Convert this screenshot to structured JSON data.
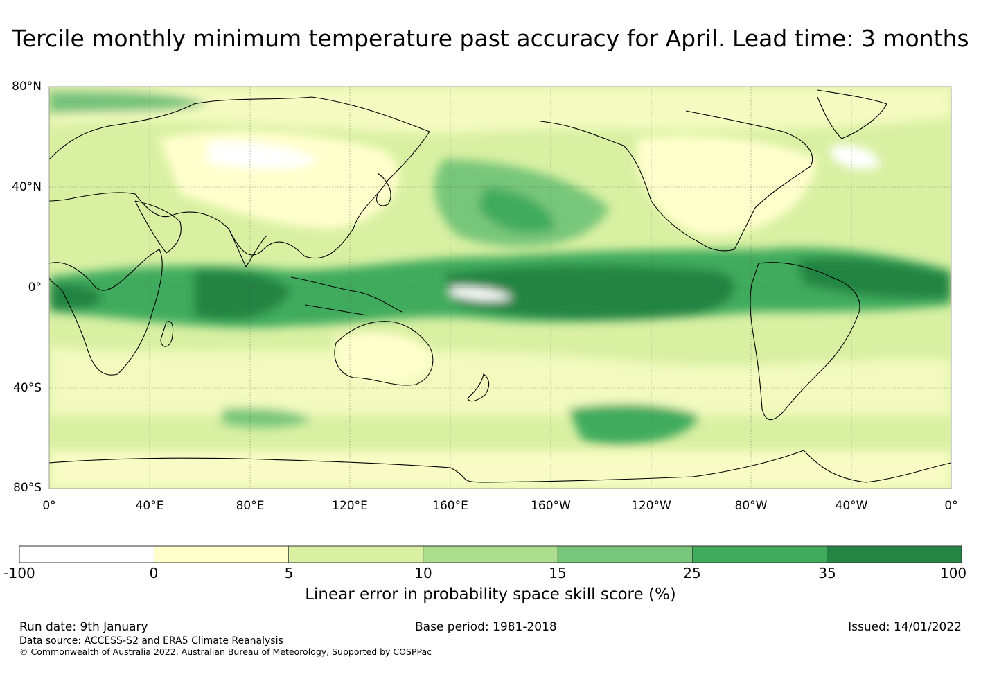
{
  "title": "Tercile monthly minimum temperature past accuracy for April. Lead time: 3 months",
  "map": {
    "lat_labels": [
      "80°N",
      "40°N",
      "0°",
      "40°S",
      "80°S"
    ],
    "lon_labels": [
      "0°",
      "40°E",
      "80°E",
      "120°E",
      "160°E",
      "160°W",
      "120°W",
      "80°W",
      "40°W",
      "0°"
    ],
    "lat_range": [
      -80,
      80
    ],
    "lon_range": [
      0,
      360
    ]
  },
  "colorbar": {
    "ticks": [
      "-100",
      "0",
      "5",
      "10",
      "15",
      "25",
      "35",
      "100"
    ],
    "colors": [
      "#ffffff",
      "#ffffcc",
      "#d9f0a3",
      "#addd8e",
      "#78c679",
      "#41ab5d",
      "#238443"
    ],
    "label": "Linear error in probability space skill score (%)"
  },
  "footer": {
    "run_date": "Run date: 9th January",
    "base_period": "Base period: 1981-2018",
    "issued": "Issued: 14/01/2022",
    "data_source": "Data source: ACCESS-S2 and ERA5 Climate Reanalysis",
    "copyright": "© Commonwealth of Australia 2022, Australian Bureau of Meteorology, Supported by COSPPac"
  }
}
